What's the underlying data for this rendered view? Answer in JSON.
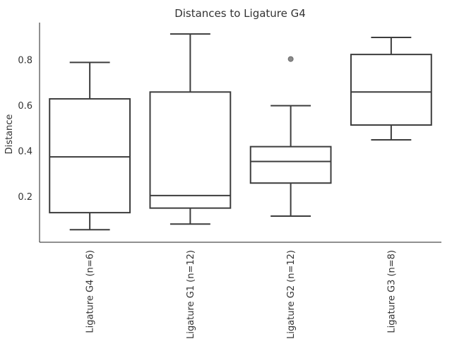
{
  "chart_data": {
    "type": "box",
    "title": "Distances to Ligature G4",
    "xlabel": "",
    "ylabel": "Distance",
    "ylim": [
      0.0,
      0.965
    ],
    "yticks": [
      0.2,
      0.4,
      0.6,
      0.8
    ],
    "ytick_labels": [
      "0.2",
      "0.4",
      "0.6",
      "0.8"
    ],
    "grid": false,
    "categories": [
      "Ligature G4 (n=6)",
      "Ligature G1 (n=12)",
      "Ligature G2 (n=12)",
      "Ligature G3 (n=8)"
    ],
    "boxes": [
      {
        "whisker_low": 0.055,
        "q1": 0.13,
        "median": 0.375,
        "q3": 0.63,
        "whisker_high": 0.79,
        "outliers": []
      },
      {
        "whisker_low": 0.08,
        "q1": 0.15,
        "median": 0.205,
        "q3": 0.66,
        "whisker_high": 0.915,
        "outliers": []
      },
      {
        "whisker_low": 0.115,
        "q1": 0.26,
        "median": 0.355,
        "q3": 0.42,
        "whisker_high": 0.6,
        "outliers": [
          0.805
        ]
      },
      {
        "whisker_low": 0.45,
        "q1": 0.515,
        "median": 0.66,
        "q3": 0.825,
        "whisker_high": 0.9,
        "outliers": []
      }
    ],
    "colors": {
      "box_edge": "#3d3d3d",
      "box_fill": "#ffffff",
      "flier": "#8a8a8a",
      "axis": "#222222",
      "text": "#333333"
    }
  }
}
